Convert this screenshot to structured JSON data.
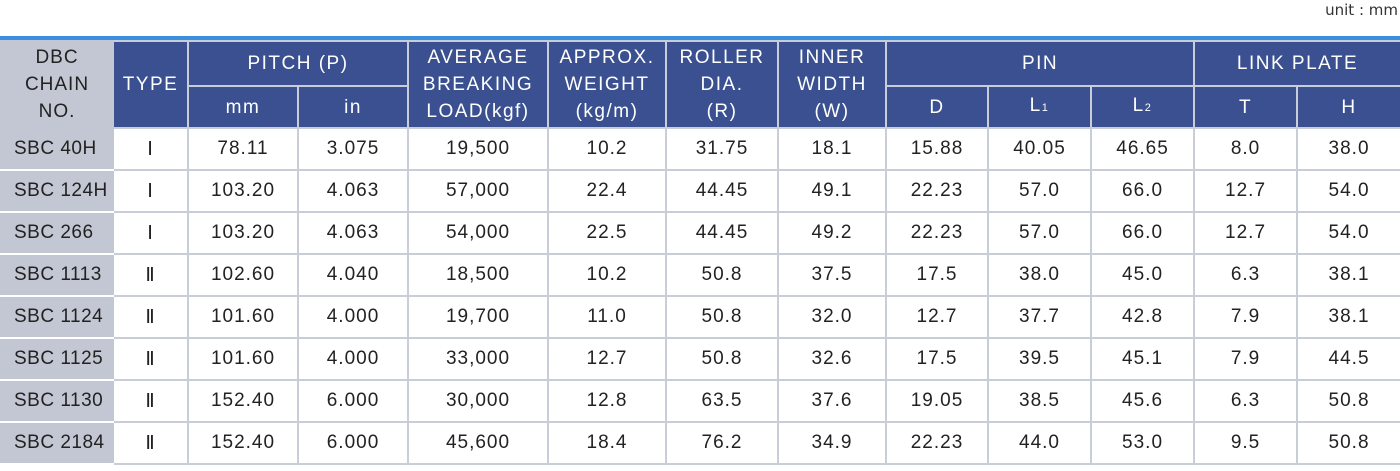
{
  "unit_label": "unit : mm",
  "header": {
    "chain_no": [
      "DBC",
      "CHAIN",
      "NO."
    ],
    "type": "TYPE",
    "pitch": "PITCH (P)",
    "pitch_mm": "mm",
    "pitch_in": "in",
    "breaking_load": [
      "AVERAGE",
      "BREAKING",
      "LOAD(kgf)"
    ],
    "weight": [
      "APPROX.",
      "WEIGHT",
      "(kg/m)"
    ],
    "roller": [
      "ROLLER",
      "DIA.",
      "(R)"
    ],
    "inner_width": [
      "INNER",
      "WIDTH",
      "(W)"
    ],
    "pin": "PIN",
    "pin_d": "D",
    "pin_l1": "L",
    "pin_l1_sub": "1",
    "pin_l2": "L",
    "pin_l2_sub": "2",
    "link_plate": "LINK PLATE",
    "link_t": "T",
    "link_h": "H"
  },
  "rows": [
    {
      "chain": "SBC 40H",
      "type": "Ⅰ",
      "mm": "78.11",
      "in": "3.075",
      "load": "19,500",
      "weight": "10.2",
      "roller": "31.75",
      "width": "18.1",
      "d": "15.88",
      "l1": "40.05",
      "l2": "46.65",
      "t": "8.0",
      "h": "38.0"
    },
    {
      "chain": "SBC 124H",
      "type": "Ⅰ",
      "mm": "103.20",
      "in": "4.063",
      "load": "57,000",
      "weight": "22.4",
      "roller": "44.45",
      "width": "49.1",
      "d": "22.23",
      "l1": "57.0",
      "l2": "66.0",
      "t": "12.7",
      "h": "54.0"
    },
    {
      "chain": "SBC 266",
      "type": "Ⅰ",
      "mm": "103.20",
      "in": "4.063",
      "load": "54,000",
      "weight": "22.5",
      "roller": "44.45",
      "width": "49.2",
      "d": "22.23",
      "l1": "57.0",
      "l2": "66.0",
      "t": "12.7",
      "h": "54.0"
    },
    {
      "chain": "SBC 1113",
      "type": "Ⅱ",
      "mm": "102.60",
      "in": "4.040",
      "load": "18,500",
      "weight": "10.2",
      "roller": "50.8",
      "width": "37.5",
      "d": "17.5",
      "l1": "38.0",
      "l2": "45.0",
      "t": "6.3",
      "h": "38.1"
    },
    {
      "chain": "SBC 1124",
      "type": "Ⅱ",
      "mm": "101.60",
      "in": "4.000",
      "load": "19,700",
      "weight": "11.0",
      "roller": "50.8",
      "width": "32.0",
      "d": "12.7",
      "l1": "37.7",
      "l2": "42.8",
      "t": "7.9",
      "h": "38.1"
    },
    {
      "chain": "SBC 1125",
      "type": "Ⅱ",
      "mm": "101.60",
      "in": "4.000",
      "load": "33,000",
      "weight": "12.7",
      "roller": "50.8",
      "width": "32.6",
      "d": "17.5",
      "l1": "39.5",
      "l2": "45.1",
      "t": "7.9",
      "h": "44.5"
    },
    {
      "chain": "SBC 1130",
      "type": "Ⅱ",
      "mm": "152.40",
      "in": "6.000",
      "load": "30,000",
      "weight": "12.8",
      "roller": "63.5",
      "width": "37.6",
      "d": "19.05",
      "l1": "38.5",
      "l2": "45.6",
      "t": "6.3",
      "h": "50.8"
    },
    {
      "chain": "SBC 2184",
      "type": "Ⅱ",
      "mm": "152.40",
      "in": "6.000",
      "load": "45,600",
      "weight": "18.4",
      "roller": "76.2",
      "width": "34.9",
      "d": "22.23",
      "l1": "44.0",
      "l2": "53.0",
      "t": "9.5",
      "h": "50.8"
    }
  ],
  "colors": {
    "header_bg": "#3a5090",
    "chain_col_bg": "#c3c7d3",
    "accent_line": "#3b8fe0",
    "grid": "#c9cdd8"
  }
}
